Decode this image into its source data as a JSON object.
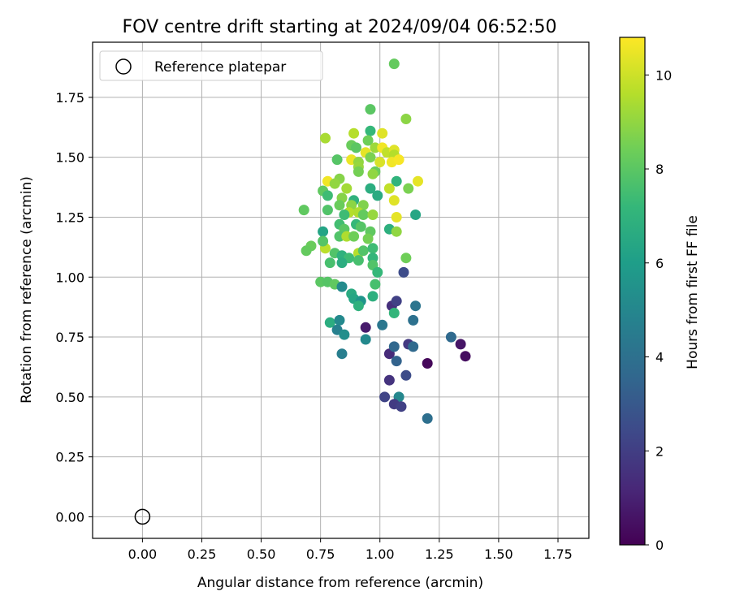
{
  "chart_data": {
    "type": "scatter",
    "title": "FOV centre drift starting at 2024/09/04 06:52:50",
    "xlabel": "Angular distance from reference (arcmin)",
    "ylabel": "Rotation from reference (arcmin)",
    "xlim": [
      -0.21,
      1.88
    ],
    "ylim": [
      -0.09,
      1.98
    ],
    "xticks": [
      "0.00",
      "0.25",
      "0.50",
      "0.75",
      "1.00",
      "1.25",
      "1.50",
      "1.75"
    ],
    "yticks": [
      "0.00",
      "0.25",
      "0.50",
      "0.75",
      "1.00",
      "1.25",
      "1.50",
      "1.75"
    ],
    "grid": true,
    "legend": {
      "position": "top-left",
      "entries": [
        "Reference platepar"
      ]
    },
    "reference_point": {
      "label": "Reference platepar",
      "x": 0.0,
      "y": 0.0
    },
    "colorbar": {
      "label": "Hours from first FF file",
      "min": 0,
      "max": 10.8,
      "ticks": [
        "0",
        "2",
        "4",
        "6",
        "8",
        "10"
      ],
      "colormap": "viridis",
      "stops": [
        "#440154",
        "#482878",
        "#3e4989",
        "#31688e",
        "#26828e",
        "#1f9e89",
        "#35b779",
        "#6ece58",
        "#b5de2b",
        "#fde725"
      ]
    },
    "series": [
      {
        "points": [
          [
            1.06,
            1.89,
            8.2
          ],
          [
            1.11,
            1.66,
            8.9
          ],
          [
            0.96,
            1.7,
            8.0
          ],
          [
            0.77,
            1.58,
            9.4
          ],
          [
            0.89,
            1.6,
            9.6
          ],
          [
            0.96,
            1.61,
            7.2
          ],
          [
            1.01,
            1.6,
            10.3
          ],
          [
            0.95,
            1.57,
            8.4
          ],
          [
            0.88,
            1.55,
            8.3
          ],
          [
            0.9,
            1.54,
            8.0
          ],
          [
            0.98,
            1.54,
            9.2
          ],
          [
            1.01,
            1.54,
            10.6
          ],
          [
            1.03,
            1.52,
            9.8
          ],
          [
            1.06,
            1.53,
            10.3
          ],
          [
            1.06,
            1.51,
            9.6
          ],
          [
            0.94,
            1.52,
            10.4
          ],
          [
            0.88,
            1.49,
            10.5
          ],
          [
            0.91,
            1.48,
            9.0
          ],
          [
            0.96,
            1.5,
            8.6
          ],
          [
            0.82,
            1.49,
            7.9
          ],
          [
            1.0,
            1.48,
            10.2
          ],
          [
            1.05,
            1.48,
            10.6
          ],
          [
            1.08,
            1.49,
            10.7
          ],
          [
            0.91,
            1.46,
            9.1
          ],
          [
            0.91,
            1.44,
            8.5
          ],
          [
            0.98,
            1.44,
            8.3
          ],
          [
            1.16,
            1.4,
            10.4
          ],
          [
            0.78,
            1.4,
            10.6
          ],
          [
            0.83,
            1.41,
            8.8
          ],
          [
            0.97,
            1.43,
            9.0
          ],
          [
            0.81,
            1.39,
            9.0
          ],
          [
            0.76,
            1.36,
            8.1
          ],
          [
            0.86,
            1.37,
            9.3
          ],
          [
            1.07,
            1.4,
            7.0
          ],
          [
            0.96,
            1.37,
            6.7
          ],
          [
            1.04,
            1.37,
            9.8
          ],
          [
            1.12,
            1.37,
            8.6
          ],
          [
            0.78,
            1.34,
            7.4
          ],
          [
            0.84,
            1.33,
            8.8
          ],
          [
            0.89,
            1.32,
            6.9
          ],
          [
            0.99,
            1.34,
            6.6
          ],
          [
            1.06,
            1.32,
            10.3
          ],
          [
            0.83,
            1.3,
            8.3
          ],
          [
            0.88,
            1.3,
            8.9
          ],
          [
            0.93,
            1.3,
            8.7
          ],
          [
            0.87,
            1.27,
            9.6
          ],
          [
            0.85,
            1.26,
            7.4
          ],
          [
            0.68,
            1.28,
            8.1
          ],
          [
            0.78,
            1.28,
            7.8
          ],
          [
            0.91,
            1.27,
            9.5
          ],
          [
            0.93,
            1.26,
            8.2
          ],
          [
            0.97,
            1.26,
            9.1
          ],
          [
            1.07,
            1.25,
            10.4
          ],
          [
            1.15,
            1.26,
            6.4
          ],
          [
            0.83,
            1.22,
            7.5
          ],
          [
            0.85,
            1.2,
            8.0
          ],
          [
            0.9,
            1.22,
            7.2
          ],
          [
            0.92,
            1.21,
            7.9
          ],
          [
            0.96,
            1.19,
            8.1
          ],
          [
            1.04,
            1.2,
            6.8
          ],
          [
            1.07,
            1.19,
            9.0
          ],
          [
            0.76,
            1.19,
            6.3
          ],
          [
            0.83,
            1.17,
            7.8
          ],
          [
            0.86,
            1.17,
            9.5
          ],
          [
            0.89,
            1.17,
            8.4
          ],
          [
            0.95,
            1.16,
            8.5
          ],
          [
            0.71,
            1.13,
            8.3
          ],
          [
            0.69,
            1.11,
            8.2
          ],
          [
            0.77,
            1.12,
            9.7
          ],
          [
            0.81,
            1.1,
            7.8
          ],
          [
            0.76,
            1.15,
            7.9
          ],
          [
            0.84,
            1.09,
            6.9
          ],
          [
            0.87,
            1.08,
            7.4
          ],
          [
            0.91,
            1.1,
            9.6
          ],
          [
            0.93,
            1.11,
            7.8
          ],
          [
            0.97,
            1.12,
            7.4
          ],
          [
            0.97,
            1.08,
            7.1
          ],
          [
            1.11,
            1.08,
            8.4
          ],
          [
            0.79,
            1.06,
            7.6
          ],
          [
            0.84,
            1.06,
            6.7
          ],
          [
            0.91,
            1.07,
            7.6
          ],
          [
            0.97,
            1.05,
            7.8
          ],
          [
            0.99,
            1.02,
            7.2
          ],
          [
            1.1,
            1.02,
            2.5
          ],
          [
            0.75,
            0.98,
            8.0
          ],
          [
            0.78,
            0.98,
            7.9
          ],
          [
            0.81,
            0.97,
            8.1
          ],
          [
            0.84,
            0.96,
            5.2
          ],
          [
            0.98,
            0.97,
            7.6
          ],
          [
            0.88,
            0.93,
            6.6
          ],
          [
            0.89,
            0.91,
            6.4
          ],
          [
            0.92,
            0.9,
            5.6
          ],
          [
            0.97,
            0.92,
            6.8
          ],
          [
            1.05,
            0.88,
            1.5
          ],
          [
            1.07,
            0.9,
            2.1
          ],
          [
            0.91,
            0.88,
            6.9
          ],
          [
            1.06,
            0.85,
            7.1
          ],
          [
            1.15,
            0.88,
            4.2
          ],
          [
            0.79,
            0.81,
            6.7
          ],
          [
            0.83,
            0.82,
            5.1
          ],
          [
            0.94,
            0.79,
            0.8
          ],
          [
            1.01,
            0.8,
            4.3
          ],
          [
            1.14,
            0.82,
            4.0
          ],
          [
            0.82,
            0.78,
            4.7
          ],
          [
            0.85,
            0.76,
            5.3
          ],
          [
            0.94,
            0.74,
            5.1
          ],
          [
            1.04,
            0.68,
            1.3
          ],
          [
            1.06,
            0.71,
            3.6
          ],
          [
            1.12,
            0.72,
            1.8
          ],
          [
            1.14,
            0.71,
            3.7
          ],
          [
            1.3,
            0.75,
            3.7
          ],
          [
            1.34,
            0.72,
            0.6
          ],
          [
            1.36,
            0.67,
            0.4
          ],
          [
            1.2,
            0.64,
            0.2
          ],
          [
            0.84,
            0.68,
            4.6
          ],
          [
            1.07,
            0.65,
            3.4
          ],
          [
            1.11,
            0.59,
            2.5
          ],
          [
            1.04,
            0.57,
            1.6
          ],
          [
            1.02,
            0.5,
            2.2
          ],
          [
            1.08,
            0.5,
            5.0
          ],
          [
            1.06,
            0.47,
            1.9
          ],
          [
            1.09,
            0.46,
            2.1
          ],
          [
            1.2,
            0.41,
            3.9
          ]
        ]
      }
    ]
  }
}
